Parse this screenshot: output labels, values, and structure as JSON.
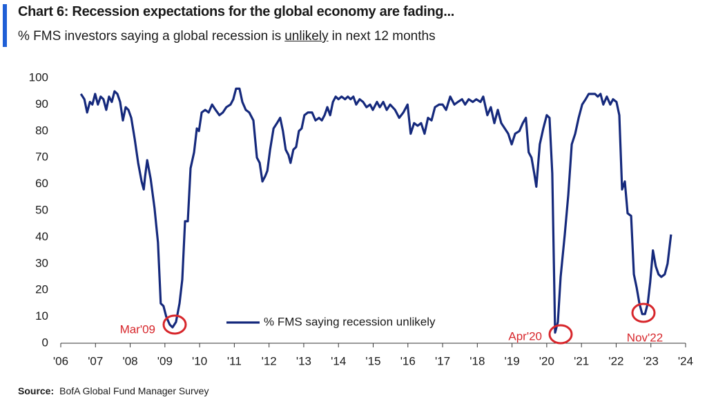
{
  "chart_data": {
    "type": "line",
    "title": "Chart 6: Recession expectations for the global economy are fading...",
    "subtitle": {
      "before": "% FMS investors saying a global recession is",
      "emphasis": "unlikely",
      "after": "in next 12 months"
    },
    "source_label": "Source:",
    "source": "BofA Global Fund Manager Survey",
    "annotations": [
      "Mar'09",
      "Apr'20",
      "Nov'22"
    ],
    "xlim": [
      2006,
      2024
    ],
    "xticks": [
      {
        "value": 2006,
        "label": "'06"
      },
      {
        "value": 2007,
        "label": "'07"
      },
      {
        "value": 2008,
        "label": "'08"
      },
      {
        "value": 2009,
        "label": "'09"
      },
      {
        "value": 2010,
        "label": "'10"
      },
      {
        "value": 2011,
        "label": "'11"
      },
      {
        "value": 2012,
        "label": "'12"
      },
      {
        "value": 2013,
        "label": "'13"
      },
      {
        "value": 2014,
        "label": "'14"
      },
      {
        "value": 2015,
        "label": "'15"
      },
      {
        "value": 2016,
        "label": "'16"
      },
      {
        "value": 2017,
        "label": "'17"
      },
      {
        "value": 2018,
        "label": "'18"
      },
      {
        "value": 2019,
        "label": "'19"
      },
      {
        "value": 2020,
        "label": "'20"
      },
      {
        "value": 2021,
        "label": "'21"
      },
      {
        "value": 2022,
        "label": "'22"
      },
      {
        "value": 2023,
        "label": "'23"
      },
      {
        "value": 2024,
        "label": "'24"
      }
    ],
    "ylim": [
      0,
      100
    ],
    "yticks": [
      0,
      10,
      20,
      30,
      40,
      50,
      60,
      70,
      80,
      90,
      100
    ],
    "grid": false,
    "legend": "center",
    "x": [
      2006.58,
      2006.68,
      2006.76,
      2006.84,
      2006.91,
      2006.99,
      2007.07,
      2007.15,
      2007.23,
      2007.31,
      2007.39,
      2007.47,
      2007.55,
      2007.63,
      2007.71,
      2007.79,
      2007.87,
      2007.95,
      2008.03,
      2008.13,
      2008.23,
      2008.33,
      2008.39,
      2008.43,
      2008.49,
      2008.59,
      2008.7,
      2008.8,
      2008.88,
      2008.96,
      2009.04,
      2009.14,
      2009.22,
      2009.32,
      2009.42,
      2009.5,
      2009.58,
      2009.66,
      2009.74,
      2009.84,
      2009.92,
      2009.98,
      2010.06,
      2010.16,
      2010.26,
      2010.36,
      2010.46,
      2010.57,
      2010.67,
      2010.77,
      2010.89,
      2010.97,
      2011.05,
      2011.15,
      2011.23,
      2011.33,
      2011.43,
      2011.55,
      2011.65,
      2011.73,
      2011.81,
      2011.89,
      2011.95,
      2012.03,
      2012.13,
      2012.23,
      2012.32,
      2012.4,
      2012.48,
      2012.56,
      2012.62,
      2012.7,
      2012.78,
      2012.86,
      2012.94,
      2013.02,
      2013.12,
      2013.24,
      2013.34,
      2013.44,
      2013.52,
      2013.6,
      2013.68,
      2013.76,
      2013.84,
      2013.92,
      2014.0,
      2014.09,
      2014.19,
      2014.27,
      2014.35,
      2014.43,
      2014.51,
      2014.61,
      2014.71,
      2014.81,
      2014.91,
      2014.99,
      2015.11,
      2015.19,
      2015.29,
      2015.39,
      2015.49,
      2015.63,
      2015.75,
      2015.87,
      2015.99,
      2016.08,
      2016.18,
      2016.28,
      2016.38,
      2016.48,
      2016.58,
      2016.68,
      2016.78,
      2016.9,
      2017.0,
      2017.1,
      2017.22,
      2017.34,
      2017.44,
      2017.56,
      2017.65,
      2017.75,
      2017.87,
      2017.97,
      2018.09,
      2018.17,
      2018.29,
      2018.39,
      2018.49,
      2018.59,
      2018.69,
      2018.79,
      2018.89,
      2018.99,
      2019.09,
      2019.21,
      2019.31,
      2019.4,
      2019.48,
      2019.56,
      2019.64,
      2019.7,
      2019.8,
      2019.9,
      2020.0,
      2020.08,
      2020.16,
      2020.24,
      2020.32,
      2020.4,
      2020.52,
      2020.62,
      2020.72,
      2020.82,
      2020.92,
      2021.02,
      2021.12,
      2021.21,
      2021.31,
      2021.39,
      2021.47,
      2021.55,
      2021.63,
      2021.73,
      2021.83,
      2021.91,
      2022.01,
      2022.09,
      2022.17,
      2022.25,
      2022.33,
      2022.43,
      2022.51,
      2022.59,
      2022.67,
      2022.75,
      2022.83,
      2022.91,
      2022.98,
      2023.06,
      2023.14,
      2023.22,
      2023.3,
      2023.4,
      2023.48,
      2023.58
    ],
    "series": [
      {
        "name": "% FMS saying recession unlikely",
        "color": "#15297c",
        "values": [
          94,
          92,
          87,
          91,
          90,
          94,
          90,
          93,
          92,
          88,
          93,
          91,
          95,
          94,
          91,
          84,
          89,
          88,
          85,
          77,
          68,
          61,
          58,
          63,
          69,
          62,
          51,
          38,
          15,
          14,
          10,
          7,
          6,
          8,
          15,
          24,
          46,
          46,
          66,
          72,
          81,
          80,
          87,
          88,
          87,
          90,
          88,
          86,
          87,
          89,
          90,
          92,
          96,
          96,
          91,
          88,
          87,
          84,
          70,
          68,
          61,
          63,
          65,
          73,
          81,
          83,
          85,
          80,
          73,
          71,
          68,
          73,
          74,
          80,
          81,
          86,
          87,
          87,
          84,
          85,
          84,
          86,
          89,
          86,
          91,
          93,
          92,
          93,
          92,
          93,
          92,
          93,
          90,
          92,
          91,
          89,
          90,
          88,
          91,
          89,
          91,
          88,
          90,
          88,
          85,
          87,
          90,
          79,
          83,
          82,
          83,
          79,
          85,
          84,
          89,
          90,
          90,
          88,
          93,
          90,
          91,
          92,
          90,
          92,
          91,
          92,
          91,
          93,
          86,
          89,
          83,
          88,
          83,
          81,
          79,
          75,
          79,
          80,
          83,
          85,
          72,
          70,
          64,
          59,
          75,
          81,
          86,
          85,
          64,
          4,
          8,
          25,
          41,
          56,
          75,
          79,
          85,
          90,
          92,
          94,
          94,
          94,
          93,
          94,
          90,
          93,
          90,
          92,
          91,
          86,
          58,
          61,
          49,
          48,
          26,
          21,
          15,
          11,
          11,
          15,
          23,
          35,
          29,
          26,
          25,
          26,
          30,
          41
        ]
      }
    ]
  }
}
